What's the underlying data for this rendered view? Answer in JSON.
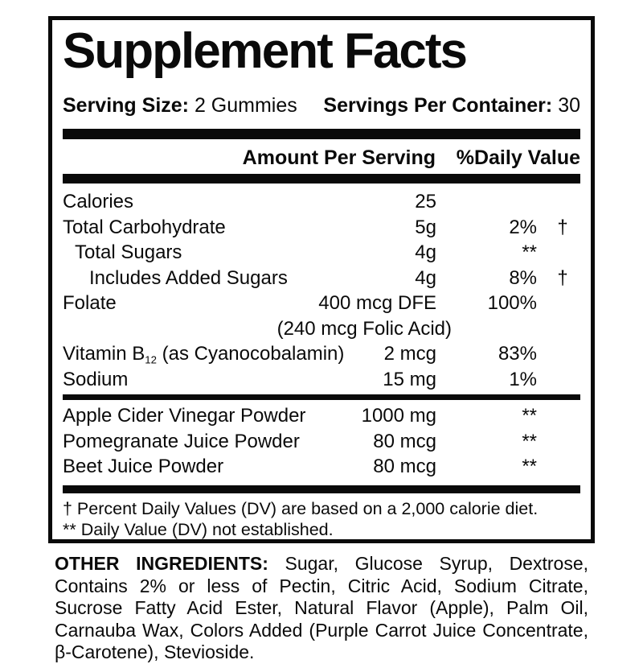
{
  "colors": {
    "ink": "#0a0a0a",
    "background": "#ffffff"
  },
  "panel": {
    "title": "Supplement Facts",
    "serving": {
      "size_label": "Serving Size:",
      "size_value": "2 Gummies",
      "container_label": "Servings Per Container:",
      "container_value": "30"
    },
    "columns": {
      "amount_header": "Amount Per Serving",
      "dv_header": "%Daily Value"
    },
    "nutrients": [
      {
        "name": "Calories",
        "amount": "25",
        "dv": "",
        "mark": ""
      },
      {
        "name": "Total Carbohydrate",
        "amount": "5g",
        "dv": "2%",
        "mark": "†"
      },
      {
        "name": "Total Sugars",
        "amount": "4g",
        "dv": "**",
        "mark": ""
      },
      {
        "name": "Includes Added Sugars",
        "amount": "4g",
        "dv": "8%",
        "mark": "†"
      },
      {
        "name": "Folate",
        "amount": "400 mcg DFE",
        "dv": "100%",
        "mark": ""
      },
      {
        "subnote": "(240 mcg Folic Acid)"
      },
      {
        "name_prefix": "Vitamin B",
        "name_sub": "12",
        "name_suffix": " (as Cyanocobalamin)",
        "amount": "2 mcg",
        "dv": "83%",
        "mark": ""
      },
      {
        "name": "Sodium",
        "amount": "15 mg",
        "dv": "1%",
        "mark": ""
      }
    ],
    "botanicals": [
      {
        "name": "Apple Cider Vinegar Powder",
        "amount": "1000 mg",
        "dv": "**"
      },
      {
        "name": "Pomegranate Juice Powder",
        "amount": "80 mcg",
        "dv": "**"
      },
      {
        "name": "Beet Juice Powder",
        "amount": "80 mcg",
        "dv": "**"
      }
    ],
    "footnotes": [
      "† Percent Daily Values (DV) are based on a 2,000 calorie diet.",
      "** Daily Value (DV) not established."
    ]
  },
  "other_ingredients": {
    "label": "OTHER INGREDIENTS:",
    "text": " Sugar, Glucose Syrup, Dextrose, Contains 2% or less of Pectin, Citric Acid, Sodium Citrate, Sucrose Fatty Acid Ester, Natural Flavor (Apple), Palm Oil, Carnauba Wax, Colors Added (Purple Carrot Juice Concentrate, β-Carotene), Stevioside."
  }
}
